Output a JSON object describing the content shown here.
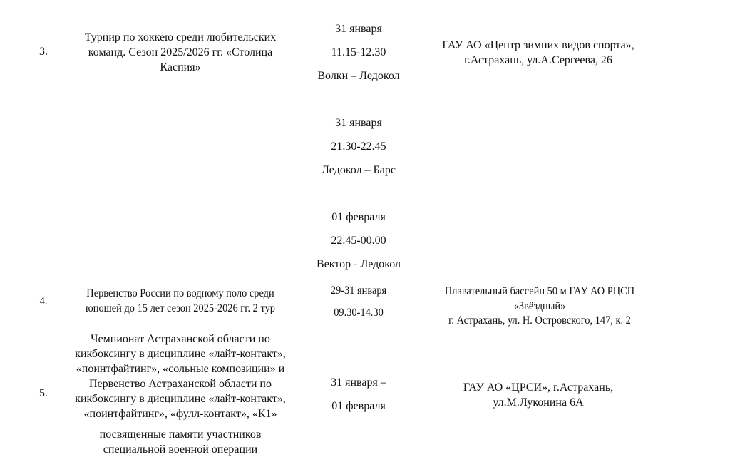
{
  "rows": [
    {
      "num": "3.",
      "event": [
        "Турнир по хоккею среди любительских",
        "команд. Сезон 2025/2026 гг. «Столица",
        "Каспия»"
      ],
      "schedule": [
        [
          "31 января",
          "11.15-12.30",
          "Волки – Ледокол"
        ],
        [
          "31 января",
          "21.30-22.45",
          "Ледокол – Барс"
        ],
        [
          "01 февраля",
          "22.45-00.00",
          "Вектор - Ледокол"
        ]
      ],
      "venue": [
        "ГАУ АО «Центр зимних видов спорта»,",
        "г.Астрахань, ул.А.Сергеева, 26"
      ]
    },
    {
      "num": "4.",
      "event": [
        "Первенство России по водному поло среди",
        "юношей до 15 лет сезон 2025-2026 гг. 2 тур"
      ],
      "schedule": [
        [
          "29-31 января",
          "09.30-14.30"
        ]
      ],
      "venue": [
        "Плавательный бассейн 50 м ГАУ АО РЦСП",
        "«Звёздный»",
        "г. Астрахань, ул. Н. Островского, 147, к. 2"
      ]
    },
    {
      "num": "5.",
      "event": [
        "Чемпионат Астраханской области по",
        "кикбоксингу в дисциплине «лайт-контакт»,",
        "«поинтфайтинг», «сольные композиции» и",
        "Первенство Астраханской области по",
        "кикбоксингу в дисциплине «лайт-контакт»,",
        "«поинтфайтинг», «фулл-контакт», «К1»",
        "посвященные памяти участников",
        "специальной военной операции"
      ],
      "schedule": [
        [
          "31 января –",
          "01 февраля"
        ]
      ],
      "venue": [
        "ГАУ АО «ЦРСИ», г.Астрахань,",
        "ул.М.Луконина 6А"
      ]
    }
  ]
}
